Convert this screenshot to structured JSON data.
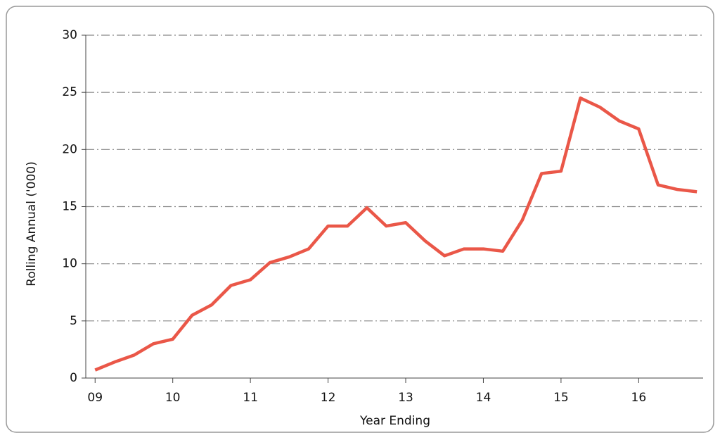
{
  "chart_data": {
    "type": "line",
    "x_label": "Year Ending",
    "y_label": "Rolling Annual ('000)",
    "x": [
      9,
      9.25,
      9.5,
      9.75,
      10,
      10.25,
      10.5,
      10.75,
      11,
      11.25,
      11.5,
      11.75,
      12,
      12.25,
      12.5,
      12.75,
      13,
      13.25,
      13.5,
      13.75,
      14,
      14.25,
      14.5,
      14.75,
      15,
      15.25,
      15.5,
      15.75,
      16,
      16.25,
      16.5,
      16.75
    ],
    "series": [
      {
        "color": "#ea5748",
        "values": [
          0.7,
          1.4,
          2.0,
          3.0,
          3.4,
          5.5,
          6.4,
          8.1,
          8.6,
          10.1,
          10.6,
          11.3,
          13.3,
          13.3,
          14.9,
          13.3,
          13.6,
          12.0,
          10.7,
          11.3,
          11.3,
          11.1,
          13.8,
          17.9,
          18.1,
          24.5,
          23.7,
          22.5,
          21.8,
          16.9,
          16.5,
          16.3
        ]
      }
    ],
    "xlim": [
      8.88,
      16.83
    ],
    "xticks": [
      {
        "value": 9,
        "label": "09"
      },
      10,
      11,
      12,
      13,
      14,
      15,
      16
    ],
    "ylim": [
      0,
      30
    ],
    "yticks": [
      0,
      5,
      10,
      15,
      20,
      25,
      30
    ],
    "grid": true
  }
}
